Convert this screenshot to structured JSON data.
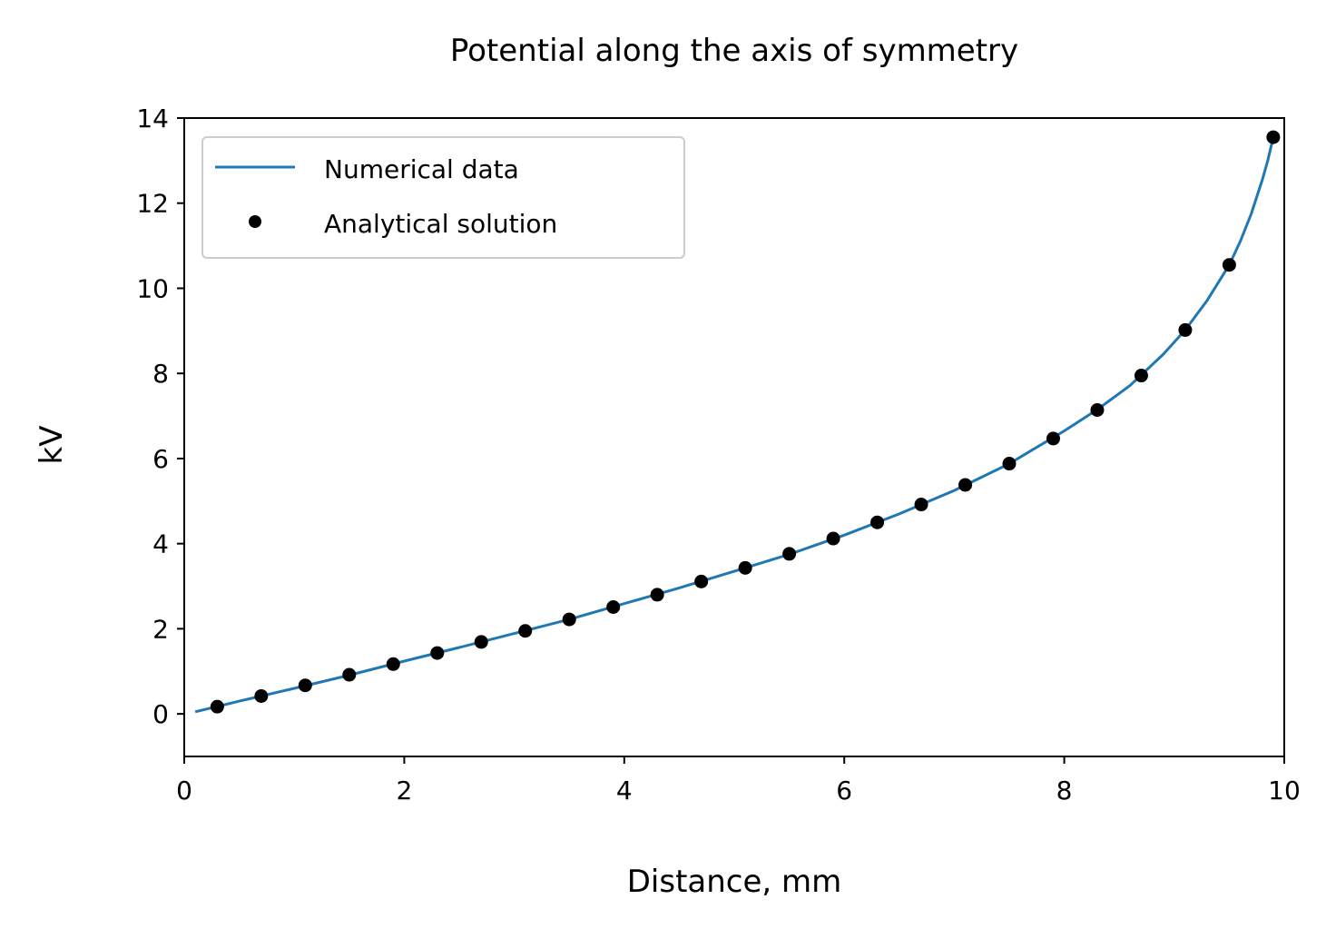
{
  "chart_data": {
    "type": "line",
    "title": "Potential along the axis of symmetry",
    "xlabel": "Distance, mm",
    "ylabel": "kV",
    "xlim": [
      0,
      10
    ],
    "ylim": [
      -1,
      14
    ],
    "xticks": [
      0,
      2,
      4,
      6,
      8,
      10
    ],
    "yticks": [
      0,
      2,
      4,
      6,
      8,
      10,
      12,
      14
    ],
    "grid": false,
    "legend_position": "top-left",
    "series": [
      {
        "name": "Numerical data",
        "style": "line",
        "color": "#1f77b4",
        "x": [
          0.1,
          0.5,
          1.0,
          1.5,
          2.0,
          2.5,
          3.0,
          3.5,
          4.0,
          4.5,
          5.0,
          5.5,
          6.0,
          6.5,
          7.0,
          7.5,
          8.0,
          8.3,
          8.6,
          8.9,
          9.1,
          9.3,
          9.5,
          9.6,
          9.7,
          9.8,
          9.85,
          9.9
        ],
        "y": [
          0.05,
          0.3,
          0.6,
          0.91,
          1.24,
          1.56,
          1.89,
          2.22,
          2.59,
          2.96,
          3.35,
          3.75,
          4.2,
          4.7,
          5.25,
          5.88,
          6.65,
          7.15,
          7.72,
          8.45,
          9.02,
          9.72,
          10.55,
          11.1,
          11.75,
          12.55,
          13.0,
          13.55
        ]
      },
      {
        "name": "Analytical solution",
        "style": "markers",
        "color": "#000000",
        "x": [
          0.3,
          0.7,
          1.1,
          1.5,
          1.9,
          2.3,
          2.7,
          3.1,
          3.5,
          3.9,
          4.3,
          4.7,
          5.1,
          5.5,
          5.9,
          6.3,
          6.7,
          7.1,
          7.5,
          7.9,
          8.3,
          8.7,
          9.1,
          9.5,
          9.9
        ],
        "y": [
          0.17,
          0.42,
          0.67,
          0.92,
          1.17,
          1.43,
          1.69,
          1.95,
          2.22,
          2.51,
          2.8,
          3.11,
          3.43,
          3.76,
          4.12,
          4.5,
          4.92,
          5.38,
          5.88,
          6.47,
          7.14,
          7.95,
          9.02,
          10.55,
          13.55
        ]
      }
    ]
  }
}
